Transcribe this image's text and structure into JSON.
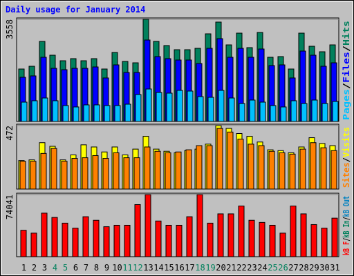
{
  "chart_data": [
    {
      "type": "bar",
      "title": "Daily usage for January 2014",
      "legend_separator": "/",
      "ylim": [
        0,
        3558
      ],
      "yticks": [
        3558
      ],
      "series": [
        {
          "name": "Hits",
          "color": "#00805c",
          "values": [
            1827,
            1923,
            2789,
            2308,
            2115,
            2188,
            2115,
            2188,
            1827,
            2404,
            2091,
            2043,
            3558,
            2789,
            2644,
            2500,
            2500,
            2548,
            3053,
            3462,
            2668,
            3077,
            2572,
            3101,
            2236,
            2260,
            1827,
            3077,
            2620,
            2428,
            2668
          ]
        },
        {
          "name": "Files",
          "color": "#0000ff",
          "values": [
            1539,
            1587,
            2236,
            1851,
            1803,
            1851,
            1851,
            1899,
            1515,
            1971,
            1707,
            1707,
            2837,
            2260,
            2188,
            2140,
            2140,
            2019,
            2548,
            2885,
            2236,
            2548,
            2236,
            2524,
            1947,
            1971,
            1515,
            2452,
            2308,
            1923,
            2043
          ]
        },
        {
          "name": "Pages",
          "color": "#00c0ff",
          "values": [
            673,
            721,
            817,
            721,
            553,
            505,
            577,
            577,
            553,
            553,
            601,
            937,
            1130,
            1010,
            986,
            1082,
            1058,
            865,
            841,
            1082,
            817,
            625,
            745,
            673,
            553,
            505,
            721,
            625,
            745,
            625,
            697
          ]
        }
      ]
    },
    {
      "type": "bar",
      "legend_separator": "/",
      "ylim": [
        0,
        472
      ],
      "yticks": [
        472
      ],
      "series": [
        {
          "name": "Visits",
          "color": "#ffff00",
          "values": [
            212,
            217,
            345,
            318,
            217,
            254,
            329,
            313,
            276,
            313,
            254,
            297,
            392,
            297,
            281,
            270,
            286,
            297,
            334,
            472,
            451,
            413,
            392,
            350,
            292,
            286,
            270,
            313,
            382,
            339,
            323
          ]
        },
        {
          "name": "Sites",
          "color": "#ff8000",
          "values": [
            207,
            207,
            265,
            302,
            207,
            228,
            233,
            249,
            228,
            270,
            233,
            233,
            313,
            281,
            270,
            276,
            292,
            323,
            323,
            451,
            424,
            371,
            334,
            323,
            281,
            270,
            260,
            297,
            345,
            307,
            286
          ]
        }
      ]
    },
    {
      "type": "bar",
      "legend_separator": "/",
      "ylim": [
        0,
        74041
      ],
      "yticks": [
        74041
      ],
      "series": [
        {
          "name": "kB F",
          "color": "#ff0000",
          "values": [
            31487,
            28083,
            51911,
            46805,
            39997,
            34040,
            47656,
            43401,
            35742,
            37444,
            37444,
            62123,
            74041,
            42550,
            37444,
            37444,
            47656,
            74041,
            39997,
            51060,
            51060,
            60421,
            43401,
            40848,
            37444,
            28083,
            60421,
            51060,
            38295,
            34040,
            45954
          ]
        }
      ],
      "legend_extra": [
        {
          "name": "kB In",
          "color": "#00805c"
        },
        {
          "name": "kB Out",
          "color": "#0080c0"
        }
      ],
      "categories": [
        "1",
        "2",
        "3",
        "4",
        "5",
        "6",
        "7",
        "8",
        "9",
        "10",
        "11",
        "12",
        "13",
        "14",
        "15",
        "16",
        "17",
        "18",
        "19",
        "20",
        "21",
        "22",
        "23",
        "24",
        "25",
        "26",
        "27",
        "28",
        "29",
        "30",
        "31"
      ],
      "highlight_indices": [
        3,
        4,
        10,
        11,
        17,
        18,
        24,
        25
      ],
      "highlight_color": "#00805c"
    }
  ]
}
